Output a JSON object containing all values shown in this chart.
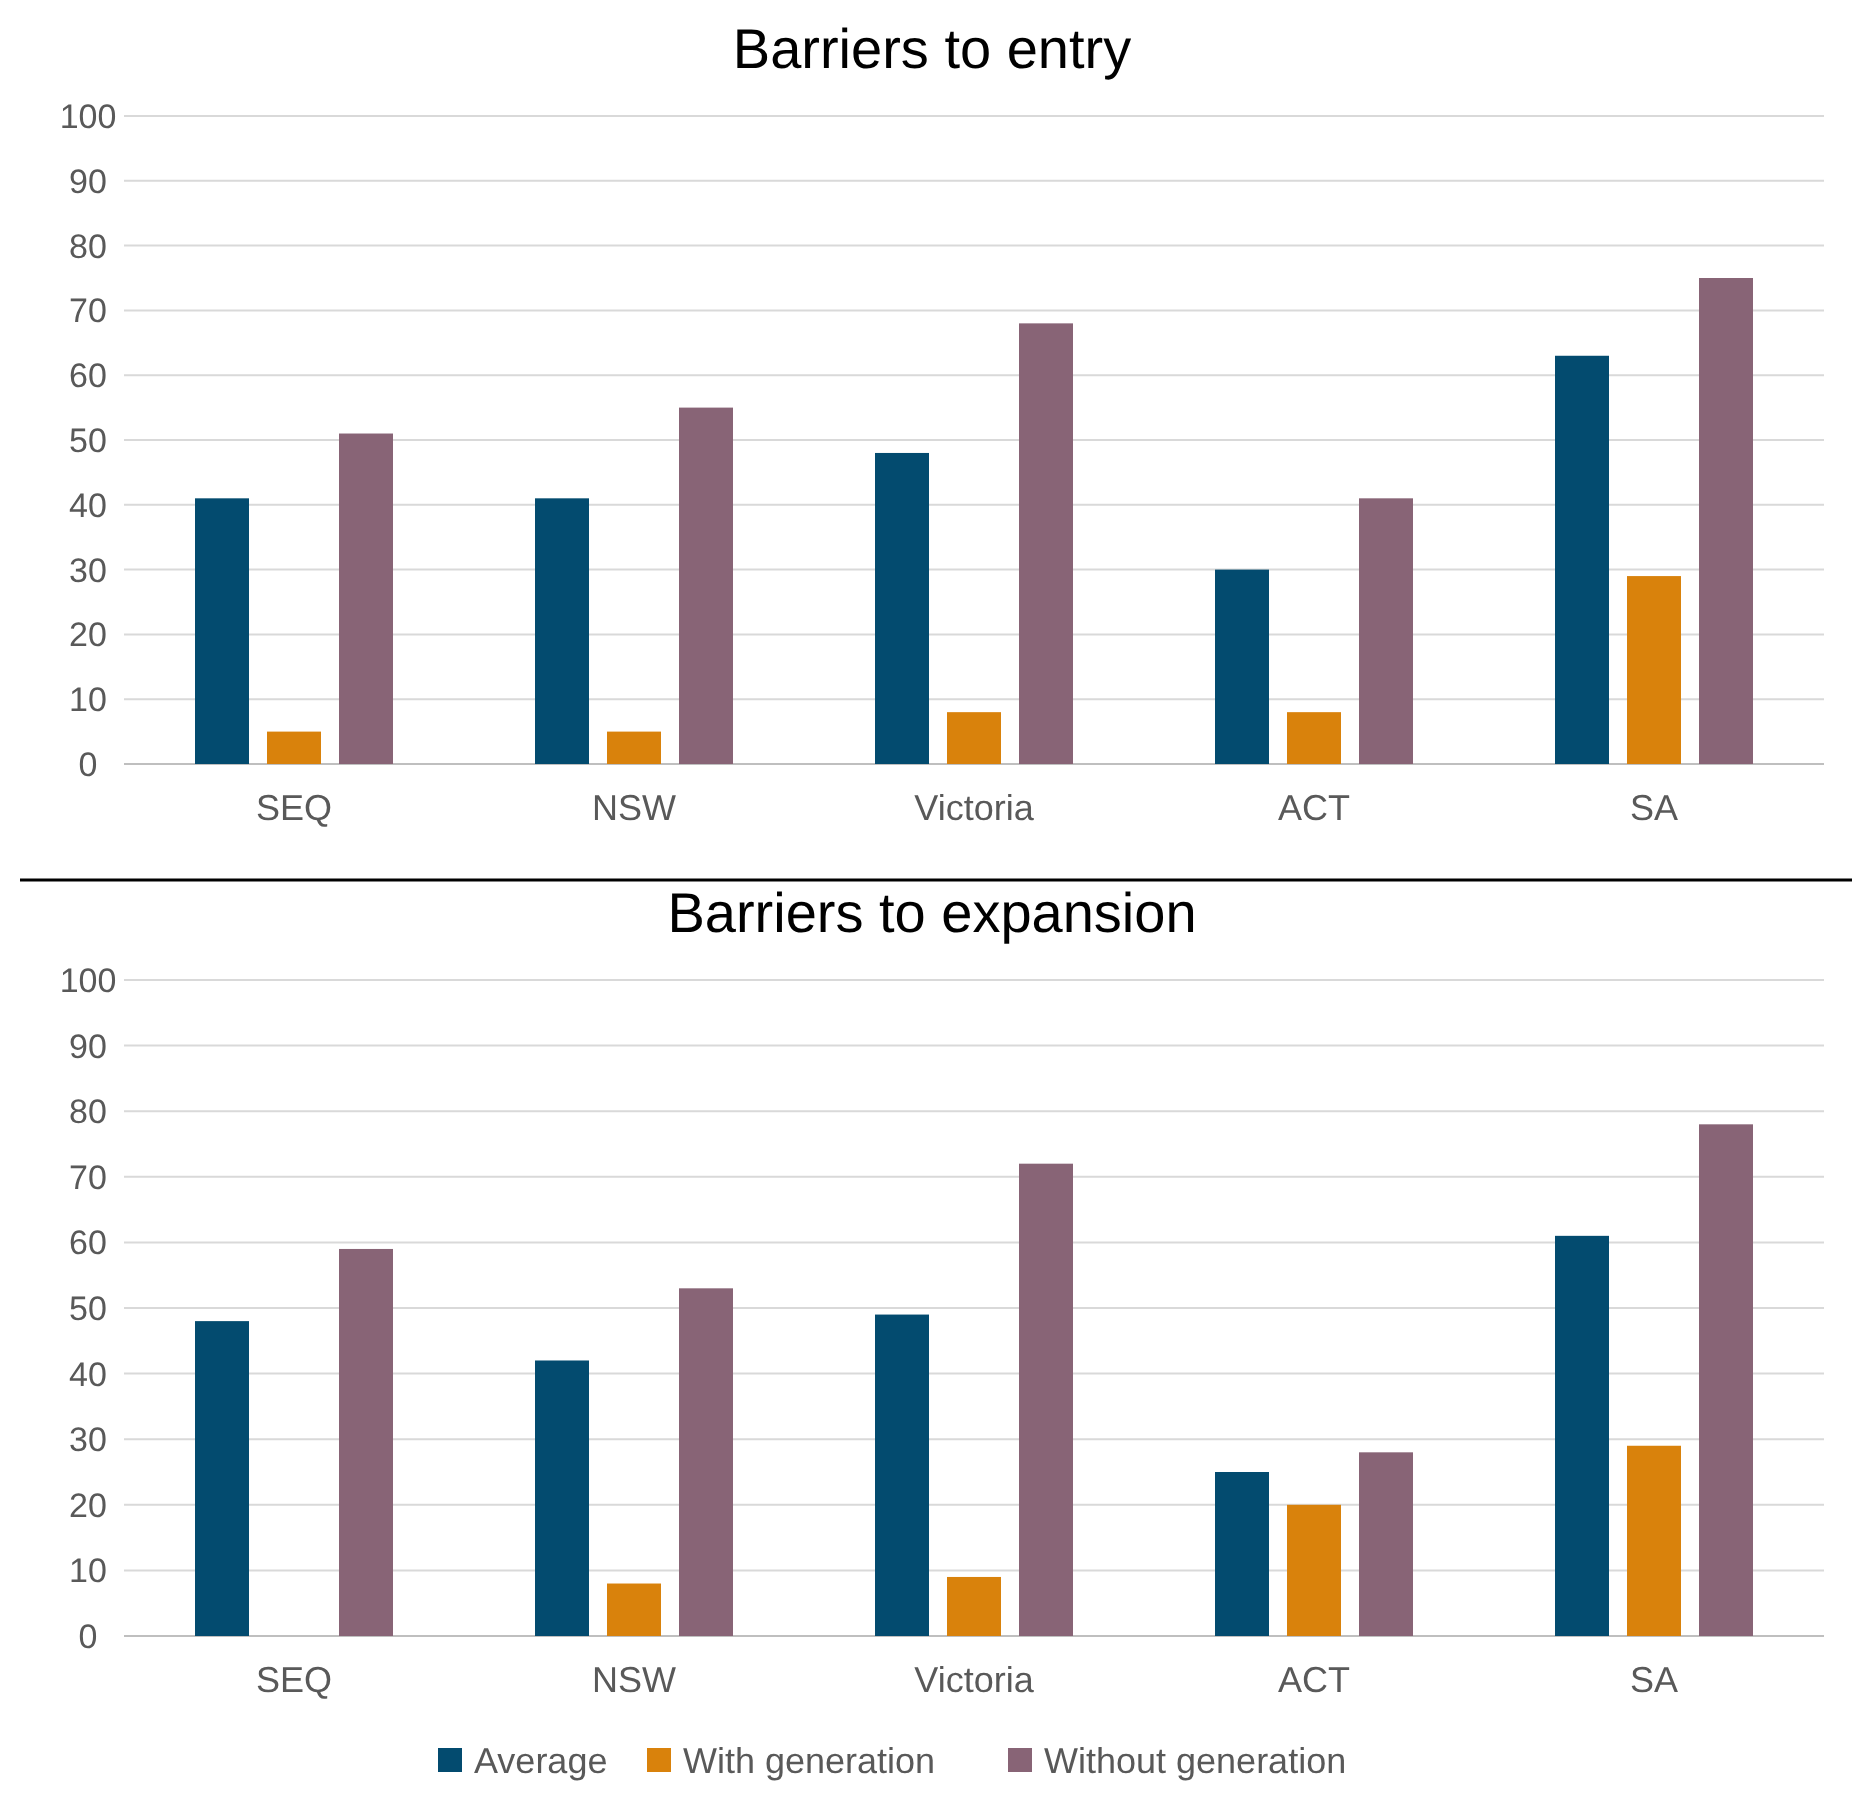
{
  "chart_data": [
    {
      "type": "bar",
      "title": "Barriers to entry",
      "categories": [
        "SEQ",
        "NSW",
        "Victoria",
        "ACT",
        "SA"
      ],
      "series": [
        {
          "color": "#034b6f",
          "values": [
            41,
            41,
            48,
            30,
            63
          ]
        },
        {
          "color": "#d9820c",
          "values": [
            5,
            5,
            8,
            8,
            29
          ]
        },
        {
          "color": "#886476",
          "values": [
            51,
            55,
            68,
            41,
            75
          ]
        }
      ],
      "ylim": [
        0,
        100
      ],
      "yticks": [
        0,
        10,
        20,
        30,
        40,
        50,
        60,
        70,
        80,
        90,
        100
      ],
      "grid": "y",
      "legend": false
    },
    {
      "type": "bar",
      "title": "Barriers to expansion",
      "categories": [
        "SEQ",
        "NSW",
        "Victoria",
        "ACT",
        "SA"
      ],
      "series": [
        {
          "name": "Average",
          "color": "#034b6f",
          "values": [
            48,
            42,
            49,
            25,
            61
          ]
        },
        {
          "name": "With generation",
          "color": "#d9820c",
          "values": [
            0,
            8,
            9,
            20,
            29
          ]
        },
        {
          "name": "Without generation",
          "color": "#886476",
          "values": [
            59,
            53,
            72,
            28,
            78
          ]
        }
      ],
      "ylim": [
        0,
        100
      ],
      "yticks": [
        0,
        10,
        20,
        30,
        40,
        50,
        60,
        70,
        80,
        90,
        100
      ],
      "grid": "y",
      "legend": "bottom"
    }
  ]
}
